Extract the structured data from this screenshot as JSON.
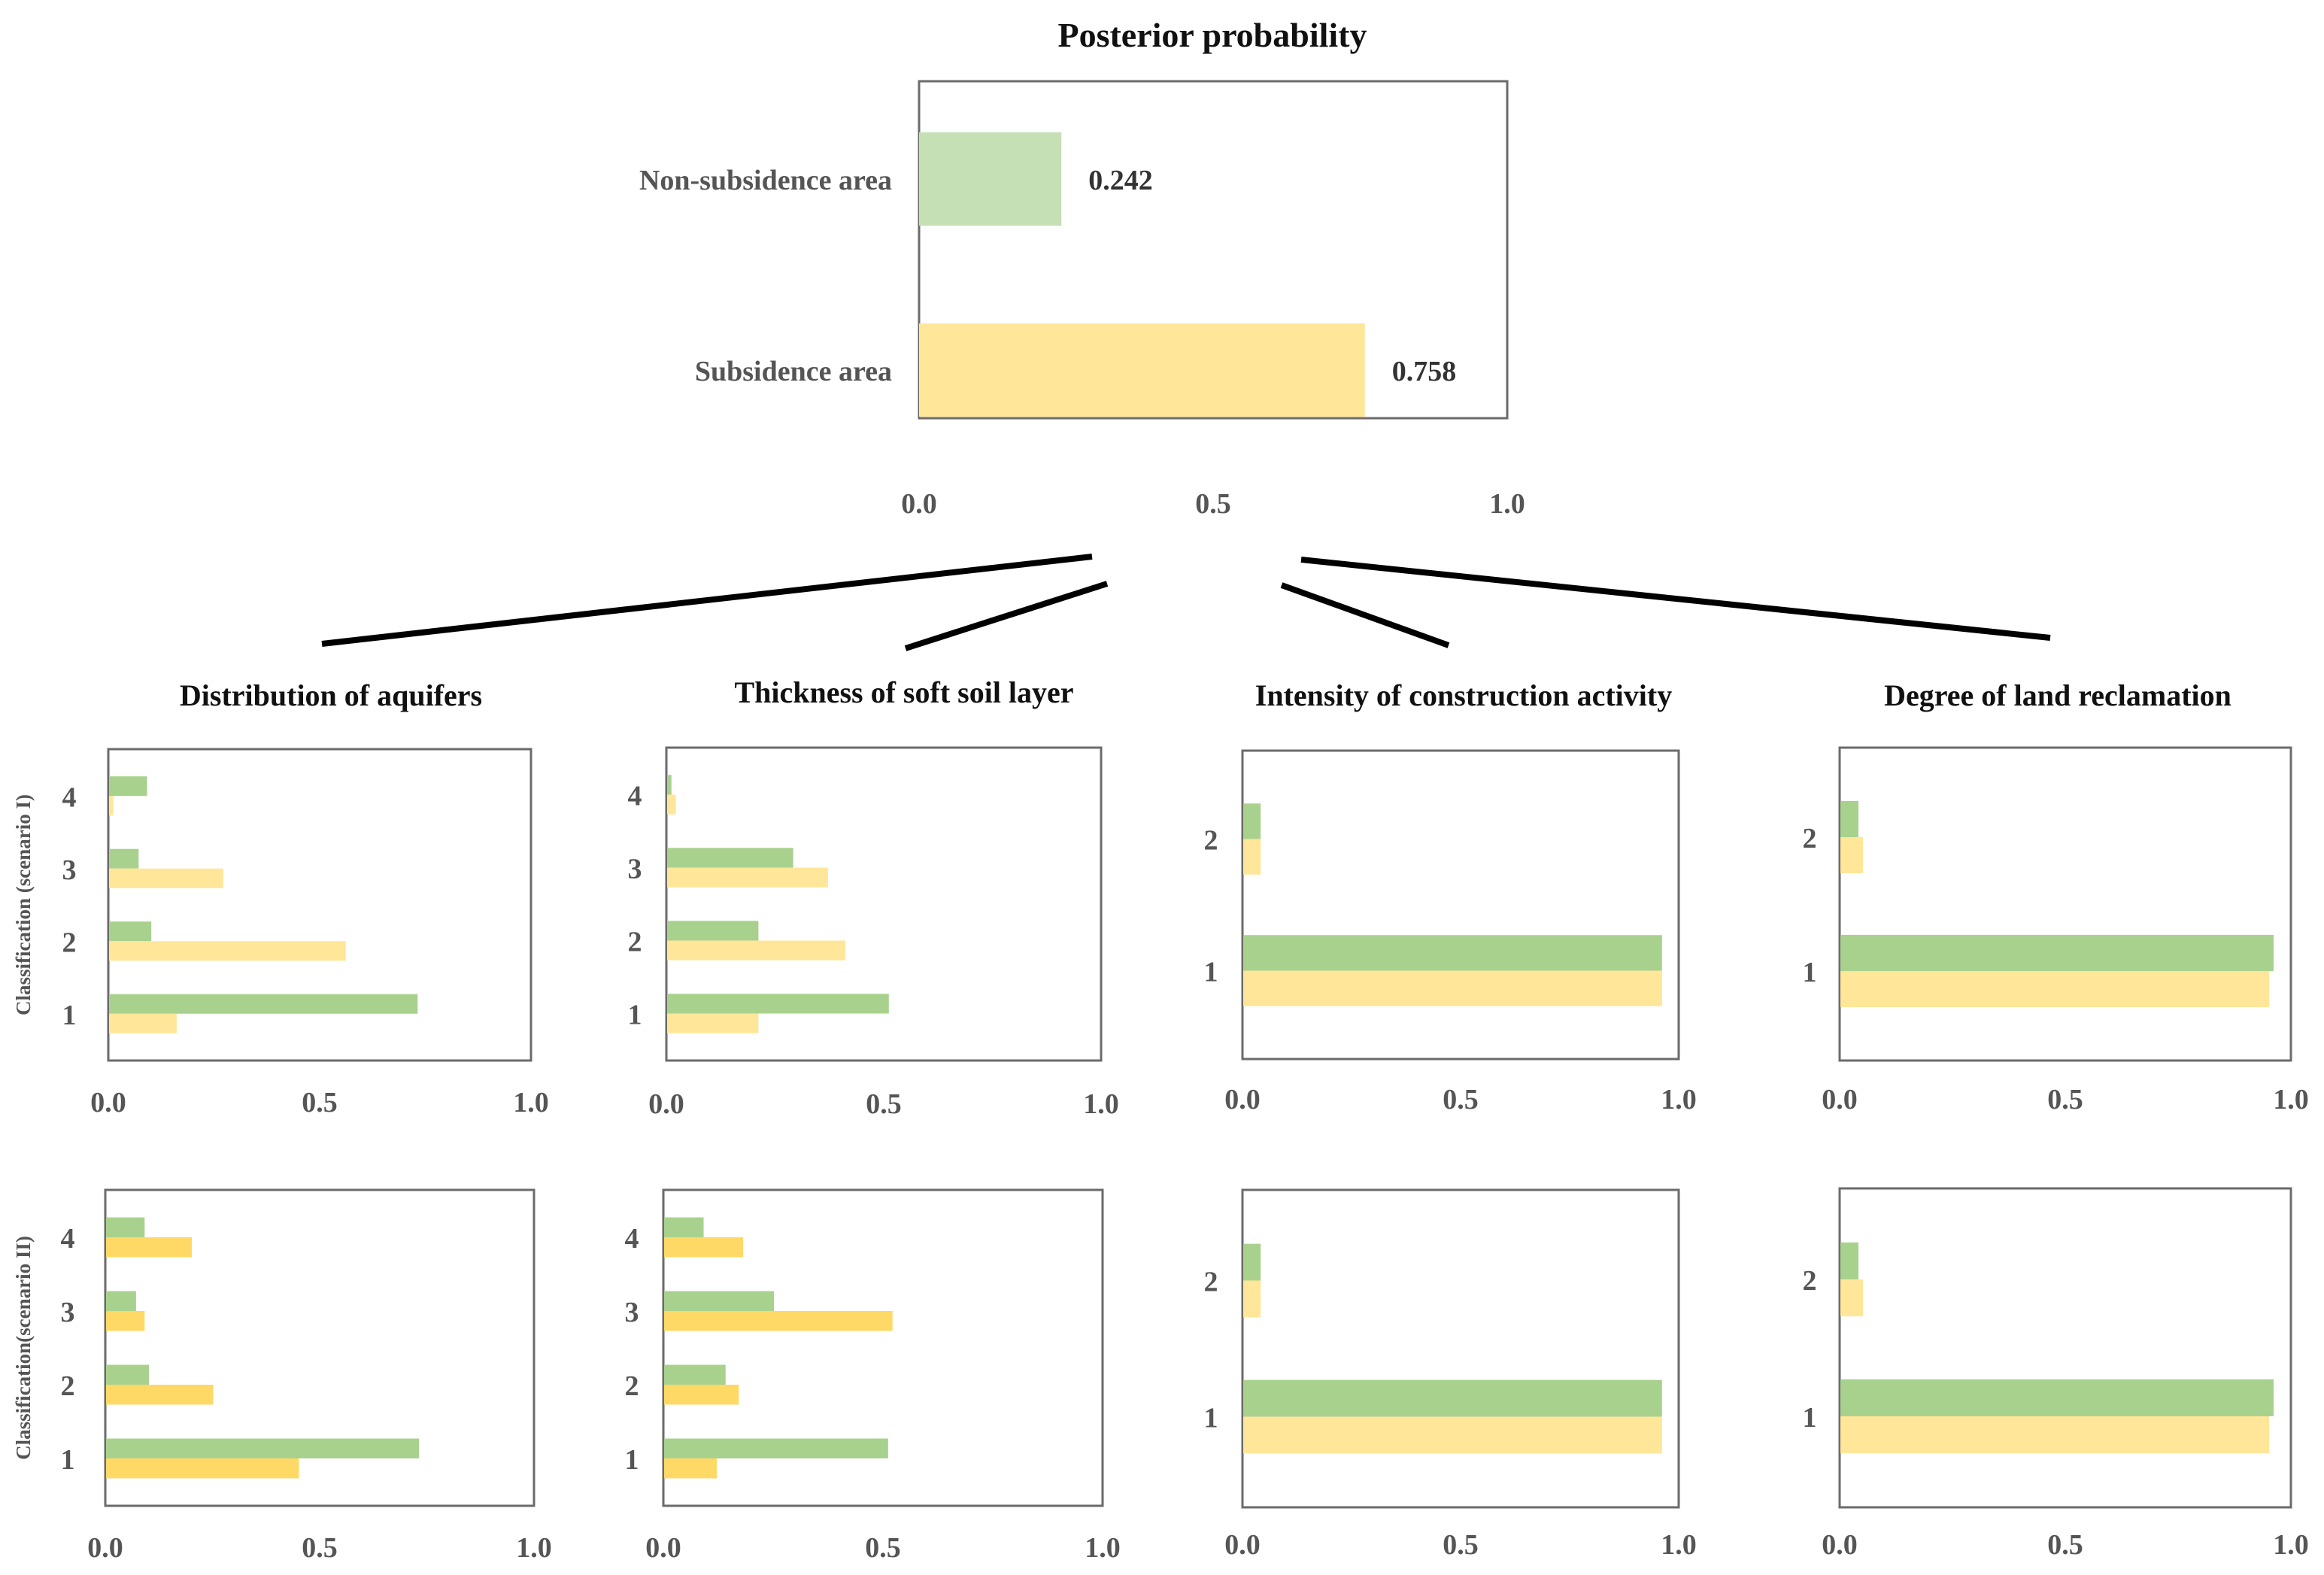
{
  "colors": {
    "non_subsidence": "#c5e0b4",
    "subsidence": "#ffe699",
    "green_bar": "#a9d18e",
    "light_yellow_bar": "#ffe699",
    "yellow_bar": "#ffd966",
    "frame": "#6b6b6b"
  },
  "chart_data": [
    {
      "id": "posterior",
      "type": "bar",
      "orientation": "horizontal",
      "title": "Posterior probability",
      "categories": [
        "Non-subsidence area",
        "Subsidence area"
      ],
      "values": [
        0.242,
        0.758
      ],
      "value_labels": [
        "0.242",
        "0.758"
      ],
      "xlim": [
        0,
        1
      ],
      "xticks": [
        "0.0",
        "0.5",
        "1.0"
      ]
    },
    {
      "id": "aquifers-s1",
      "type": "bar",
      "orientation": "horizontal",
      "title": "Distribution  of aquifers",
      "ylabel": "Classification  (scenario I)",
      "categories": [
        "1",
        "2",
        "3",
        "4"
      ],
      "series": [
        {
          "name": "Non-subsidence area",
          "values": [
            0.73,
            0.1,
            0.07,
            0.09
          ]
        },
        {
          "name": "Subsidence area",
          "values": [
            0.16,
            0.56,
            0.27,
            0.01
          ]
        }
      ],
      "xlim": [
        0,
        1
      ],
      "xticks": [
        "0.0",
        "0.5",
        "1.0"
      ]
    },
    {
      "id": "soil-s1",
      "type": "bar",
      "orientation": "horizontal",
      "title": "Thickness of soft soil layer",
      "categories": [
        "1",
        "2",
        "3",
        "4"
      ],
      "series": [
        {
          "name": "Non-subsidence area",
          "values": [
            0.51,
            0.21,
            0.29,
            0.01
          ]
        },
        {
          "name": "Subsidence area",
          "values": [
            0.21,
            0.41,
            0.37,
            0.02
          ]
        }
      ],
      "xlim": [
        0,
        1
      ],
      "xticks": [
        "0.0",
        "0.5",
        "1.0"
      ]
    },
    {
      "id": "construction-s1",
      "type": "bar",
      "orientation": "horizontal",
      "title": "Intensity of construction activity",
      "categories": [
        "1",
        "2"
      ],
      "series": [
        {
          "name": "Non-subsidence area",
          "values": [
            0.96,
            0.04
          ]
        },
        {
          "name": "Subsidence area",
          "values": [
            0.96,
            0.04
          ]
        }
      ],
      "xlim": [
        0,
        1
      ],
      "xticks": [
        "0.0",
        "0.5",
        "1.0"
      ]
    },
    {
      "id": "reclamation-s1",
      "type": "bar",
      "orientation": "horizontal",
      "title": "Degree of land reclamation",
      "categories": [
        "1",
        "2"
      ],
      "series": [
        {
          "name": "Non-subsidence area",
          "values": [
            0.96,
            0.04
          ]
        },
        {
          "name": "Subsidence area",
          "values": [
            0.95,
            0.05
          ]
        }
      ],
      "xlim": [
        0,
        1
      ],
      "xticks": [
        "0.0",
        "0.5",
        "1.0"
      ]
    },
    {
      "id": "aquifers-s2",
      "type": "bar",
      "orientation": "horizontal",
      "ylabel": "Classification(scenario II)",
      "categories": [
        "1",
        "2",
        "3",
        "4"
      ],
      "series": [
        {
          "name": "Non-subsidence area",
          "values": [
            0.73,
            0.1,
            0.07,
            0.09
          ]
        },
        {
          "name": "Subsidence area",
          "values": [
            0.45,
            0.25,
            0.09,
            0.2
          ]
        }
      ],
      "xlim": [
        0,
        1
      ],
      "xticks": [
        "0.0",
        "0.5",
        "1.0"
      ]
    },
    {
      "id": "soil-s2",
      "type": "bar",
      "orientation": "horizontal",
      "categories": [
        "1",
        "2",
        "3",
        "4"
      ],
      "series": [
        {
          "name": "Non-subsidence area",
          "values": [
            0.51,
            0.14,
            0.25,
            0.09
          ]
        },
        {
          "name": "Subsidence area",
          "values": [
            0.12,
            0.17,
            0.52,
            0.18
          ]
        }
      ],
      "xlim": [
        0,
        1
      ],
      "xticks": [
        "0.0",
        "0.5",
        "1.0"
      ]
    },
    {
      "id": "construction-s2",
      "type": "bar",
      "orientation": "horizontal",
      "categories": [
        "1",
        "2"
      ],
      "series": [
        {
          "name": "Non-subsidence area",
          "values": [
            0.96,
            0.04
          ]
        },
        {
          "name": "Subsidence area",
          "values": [
            0.96,
            0.04
          ]
        }
      ],
      "xlim": [
        0,
        1
      ],
      "xticks": [
        "0.0",
        "0.5",
        "1.0"
      ]
    },
    {
      "id": "reclamation-s2",
      "type": "bar",
      "orientation": "horizontal",
      "categories": [
        "1",
        "2"
      ],
      "series": [
        {
          "name": "Non-subsidence area",
          "values": [
            0.96,
            0.04
          ]
        },
        {
          "name": "Subsidence area",
          "values": [
            0.95,
            0.05
          ]
        }
      ],
      "xlim": [
        0,
        1
      ],
      "xticks": [
        "0.0",
        "0.5",
        "1.0"
      ]
    }
  ]
}
